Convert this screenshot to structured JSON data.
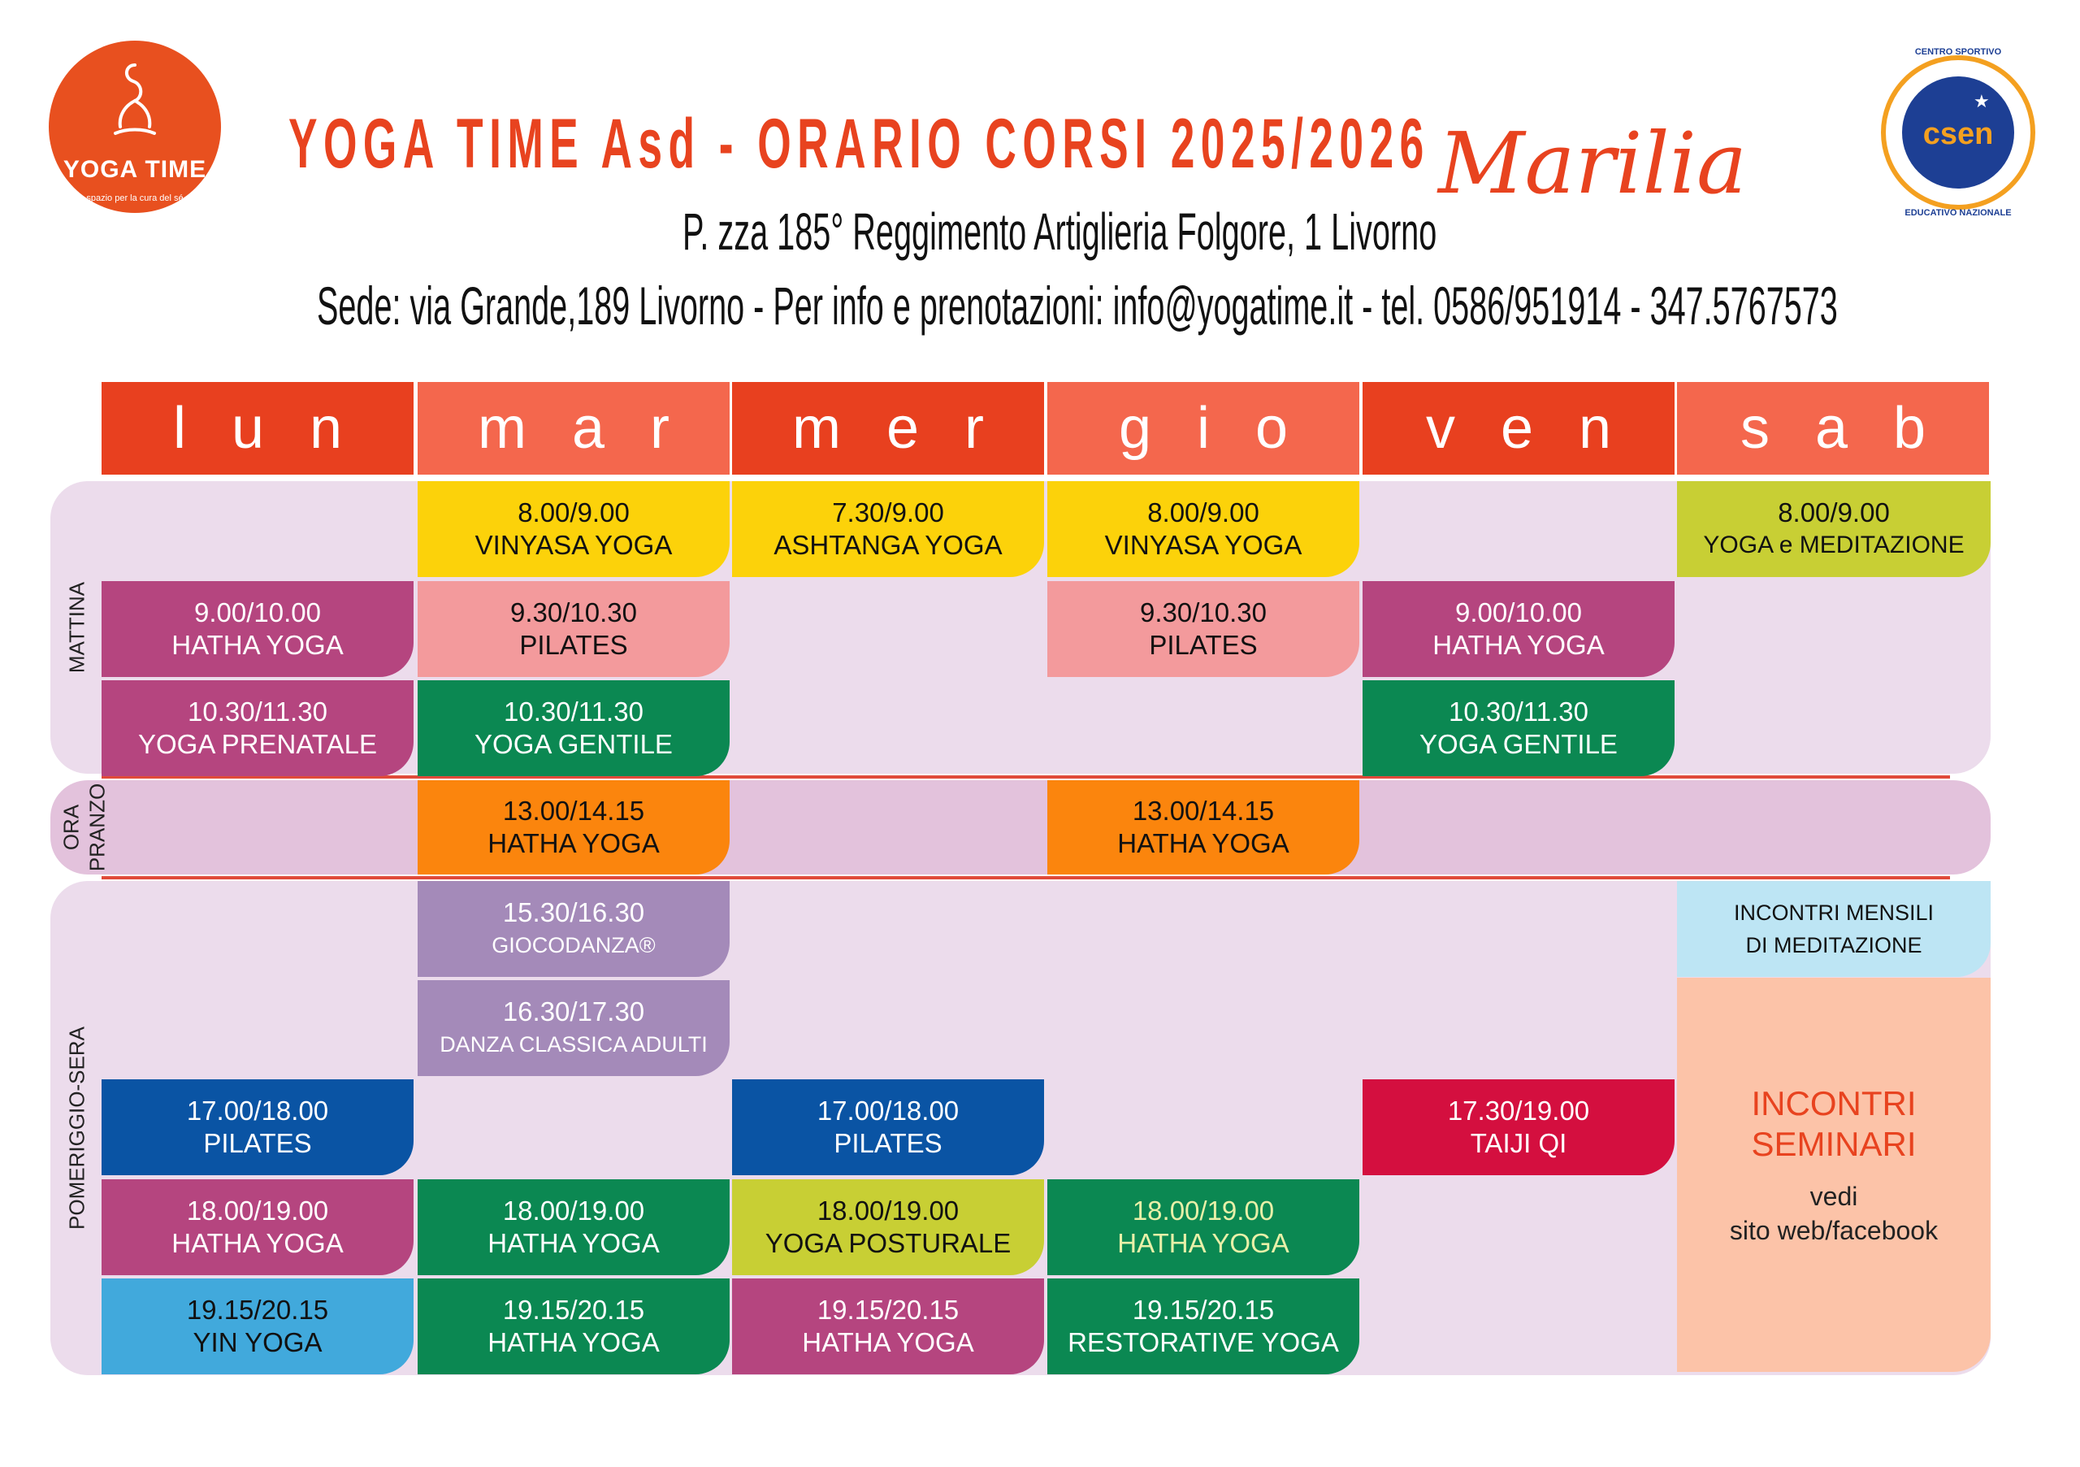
{
  "header": {
    "logo_name": "YOGA TIME",
    "logo_tagline": "spazio per la cura del sé",
    "title": "YOGA TIME Asd - ORARIO CORSI 2025/2026",
    "script_name": "Marilia",
    "address": "P. zza 185° Reggimento Artiglieria Folgore, 1 Livorno",
    "contact": "Sede: via Grande,189 Livorno - Per info e prenotazioni: info@yogatime.it - tel. 0586/951914 - 347.5767573",
    "badge": {
      "top": "CENTRO SPORTIVO",
      "name": "csen",
      "bottom": "EDUCATIVO NAZIONALE"
    }
  },
  "days": [
    "lun",
    "mar",
    "mer",
    "gio",
    "ven",
    "sab"
  ],
  "sections": {
    "morning": "MATTINA",
    "lunch_1": "ORA",
    "lunch_2": "PRANZO",
    "evening": "POMERIGGIO-SERA"
  },
  "courses": {
    "r1": {
      "mar": {
        "time": "8.00/9.00",
        "name": "VINYASA YOGA"
      },
      "mer": {
        "time": "7.30/9.00",
        "name": "ASHTANGA YOGA"
      },
      "gio": {
        "time": "8.00/9.00",
        "name": "VINYASA YOGA"
      },
      "sab": {
        "time": "8.00/9.00",
        "name": "YOGA e MEDITAZIONE"
      }
    },
    "r2": {
      "lun": {
        "time": "9.00/10.00",
        "name": "HATHA YOGA"
      },
      "mar": {
        "time": "9.30/10.30",
        "name": "PILATES"
      },
      "gio": {
        "time": "9.30/10.30",
        "name": "PILATES"
      },
      "ven": {
        "time": "9.00/10.00",
        "name": "HATHA YOGA"
      }
    },
    "r3": {
      "lun": {
        "time": "10.30/11.30",
        "name": "YOGA PRENATALE"
      },
      "mar": {
        "time": "10.30/11.30",
        "name": "YOGA GENTILE"
      },
      "ven": {
        "time": "10.30/11.30",
        "name": "YOGA GENTILE"
      }
    },
    "r4": {
      "mar": {
        "time": "13.00/14.15",
        "name": "HATHA YOGA"
      },
      "gio": {
        "time": "13.00/14.15",
        "name": "HATHA YOGA"
      }
    },
    "r5": {
      "mar": {
        "time": "15.30/16.30",
        "name": "GIOCODANZA®"
      },
      "sab": {
        "line1": "INCONTRI MENSILI",
        "line2": "DI MEDITAZIONE"
      }
    },
    "r6": {
      "mar": {
        "time": "16.30/17.30",
        "name": "DANZA CLASSICA ADULTI"
      }
    },
    "r7": {
      "lun": {
        "time": "17.00/18.00",
        "name": "PILATES"
      },
      "mer": {
        "time": "17.00/18.00",
        "name": "PILATES"
      },
      "ven": {
        "time": "17.30/19.00",
        "name": "TAIJI QI"
      }
    },
    "r8": {
      "lun": {
        "time": "18.00/19.00",
        "name": "HATHA YOGA"
      },
      "mar": {
        "time": "18.00/19.00",
        "name": "HATHA YOGA"
      },
      "mer": {
        "time": "18.00/19.00",
        "name": "YOGA POSTURALE"
      },
      "gio": {
        "time": "18.00/19.00",
        "name": "HATHA YOGA"
      }
    },
    "r9": {
      "lun": {
        "time": "19.15/20.15",
        "name": "YIN YOGA"
      },
      "mar": {
        "time": "19.15/20.15",
        "name": "HATHA YOGA"
      },
      "mer": {
        "time": "19.15/20.15",
        "name": "HATHA YOGA"
      },
      "gio": {
        "time": "19.15/20.15",
        "name": "RESTORATIVE YOGA"
      }
    }
  },
  "seminari": {
    "line1": "INCONTRI",
    "line2": "SEMINARI",
    "line3": "vedi",
    "line4": "sito web/facebook"
  },
  "colors": {
    "header_dark": "#e8401f",
    "header_light": "#f4674d",
    "yellow": "#fcd20a",
    "lime": "#c8cf34",
    "magenta": "#b5457f",
    "pink": "#f39a9c",
    "green": "#0b8852",
    "orange": "#fb850d",
    "lavender": "#a48ab9",
    "blue": "#0a54a4",
    "red": "#d40f3f",
    "cyan": "#41a9dc",
    "lightblue": "#bde5f4",
    "peach": "#fcc3a8"
  }
}
